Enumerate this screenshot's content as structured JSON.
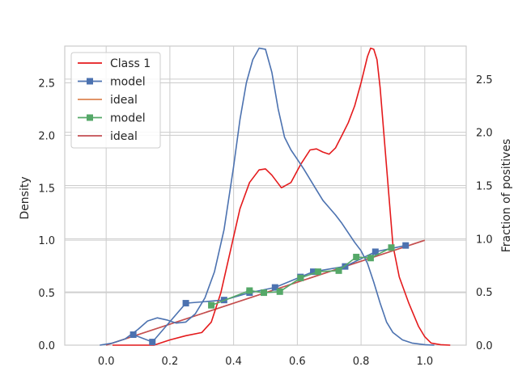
{
  "chart_data": {
    "type": "line",
    "left_axis": {
      "ylabel": "Density",
      "ylim": [
        0,
        2.85
      ],
      "ticks": [
        "0.0",
        "0.5",
        "1.0",
        "1.5",
        "2.0",
        "2.5"
      ],
      "tick_values": [
        0,
        0.5,
        1.0,
        1.5,
        2.0,
        2.5
      ]
    },
    "right_axis": {
      "ylabel": "Fraction of positives",
      "ylim": [
        0,
        2.85
      ],
      "ticks": [
        "0.0",
        "0.5",
        "1.0",
        "1.5",
        "2.0",
        "2.5"
      ],
      "tick_values": [
        0,
        0.5,
        1.0,
        1.5,
        2.0,
        2.5
      ]
    },
    "x_axis": {
      "xlabel": "",
      "xlim": [
        -0.13,
        1.13
      ],
      "ticks": [
        "0.0",
        "0.2",
        "0.4",
        "0.6",
        "0.8",
        "1.0"
      ],
      "tick_values": [
        0,
        0.2,
        0.4,
        0.6,
        0.8,
        1.0
      ]
    },
    "grid": true,
    "legend_position": "top-left",
    "colors": {
      "class1": "#e41a1c",
      "blue": "#4c72b0",
      "orange": "#dd8452",
      "green": "#55a868",
      "red": "#c44e52",
      "grid": "#cccccc"
    },
    "series": [
      {
        "name": "Class 1",
        "kind": "density",
        "color": "#e41a1c",
        "x": [
          0.02,
          0.1,
          0.15,
          0.2,
          0.25,
          0.3,
          0.33,
          0.36,
          0.39,
          0.42,
          0.45,
          0.48,
          0.5,
          0.52,
          0.55,
          0.58,
          0.61,
          0.64,
          0.66,
          0.68,
          0.7,
          0.72,
          0.74,
          0.76,
          0.78,
          0.8,
          0.82,
          0.83,
          0.84,
          0.85,
          0.86,
          0.88,
          0.9,
          0.92,
          0.95,
          0.98,
          1.0,
          1.02,
          1.05,
          1.08
        ],
        "y": [
          0,
          0,
          0,
          0.05,
          0.09,
          0.12,
          0.22,
          0.5,
          0.9,
          1.3,
          1.55,
          1.67,
          1.68,
          1.62,
          1.5,
          1.55,
          1.72,
          1.86,
          1.87,
          1.84,
          1.82,
          1.88,
          2.0,
          2.12,
          2.28,
          2.5,
          2.75,
          2.83,
          2.82,
          2.72,
          2.45,
          1.7,
          0.95,
          0.65,
          0.4,
          0.18,
          0.08,
          0.02,
          0.005,
          0
        ]
      },
      {
        "name": "",
        "kind": "density",
        "color": "#4c72b0",
        "x": [
          -0.02,
          0.02,
          0.06,
          0.1,
          0.13,
          0.16,
          0.19,
          0.22,
          0.25,
          0.28,
          0.31,
          0.34,
          0.37,
          0.4,
          0.42,
          0.44,
          0.46,
          0.48,
          0.5,
          0.52,
          0.54,
          0.56,
          0.58,
          0.6,
          0.62,
          0.64,
          0.66,
          0.68,
          0.7,
          0.72,
          0.74,
          0.76,
          0.78,
          0.8,
          0.82,
          0.84,
          0.86,
          0.88,
          0.9,
          0.93,
          0.96,
          1.0,
          1.03
        ],
        "y": [
          0,
          0.02,
          0.06,
          0.15,
          0.23,
          0.26,
          0.24,
          0.21,
          0.22,
          0.3,
          0.45,
          0.7,
          1.1,
          1.7,
          2.15,
          2.5,
          2.72,
          2.83,
          2.82,
          2.6,
          2.25,
          1.98,
          1.86,
          1.77,
          1.68,
          1.58,
          1.48,
          1.38,
          1.31,
          1.24,
          1.16,
          1.07,
          0.98,
          0.9,
          0.78,
          0.6,
          0.4,
          0.22,
          0.12,
          0.05,
          0.02,
          0.005,
          0
        ]
      },
      {
        "name": "model",
        "kind": "calibration",
        "color": "#4c72b0",
        "x": [
          0.085,
          0.145,
          0.25,
          0.37,
          0.45,
          0.53,
          0.61,
          0.65,
          0.75,
          0.845,
          0.94
        ],
        "y": [
          0.1,
          0.03,
          0.4,
          0.43,
          0.5,
          0.55,
          0.65,
          0.7,
          0.75,
          0.89,
          0.95
        ]
      },
      {
        "name": "ideal",
        "kind": "diagonal",
        "color": "#dd8452",
        "x": [
          0,
          1
        ],
        "y": [
          0,
          1
        ]
      },
      {
        "name": "model",
        "kind": "calibration",
        "color": "#55a868",
        "x": [
          0.33,
          0.45,
          0.495,
          0.545,
          0.61,
          0.665,
          0.73,
          0.785,
          0.83,
          0.895
        ],
        "y": [
          0.38,
          0.52,
          0.5,
          0.51,
          0.64,
          0.7,
          0.71,
          0.84,
          0.83,
          0.93
        ]
      },
      {
        "name": "ideal",
        "kind": "diagonal",
        "color": "#c44e52",
        "x": [
          0,
          1
        ],
        "y": [
          0,
          1
        ]
      }
    ],
    "legend": [
      {
        "label": "Class 1",
        "color": "#e41a1c",
        "marker": false
      },
      {
        "label": "model",
        "color": "#4c72b0",
        "marker": true
      },
      {
        "label": "ideal",
        "color": "#dd8452",
        "marker": false
      },
      {
        "label": "model",
        "color": "#55a868",
        "marker": true
      },
      {
        "label": "ideal",
        "color": "#c44e52",
        "marker": false
      }
    ]
  }
}
